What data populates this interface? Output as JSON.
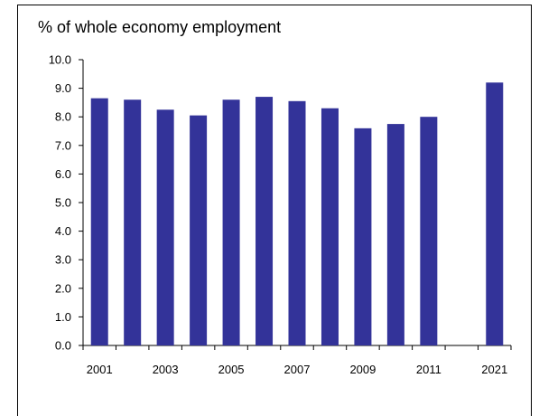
{
  "chart_data": {
    "type": "bar",
    "title": "% of whole economy employment",
    "xlabel": "",
    "ylabel": "",
    "categories": [
      "2001",
      "2002",
      "2003",
      "2004",
      "2005",
      "2006",
      "2007",
      "2008",
      "2009",
      "2010",
      "2011",
      "2012",
      "2021"
    ],
    "x_tick_labels": [
      "2001",
      "",
      "2003",
      "",
      "2005",
      "",
      "2007",
      "",
      "2009",
      "",
      "2011",
      "",
      "2021"
    ],
    "values": [
      8.65,
      8.6,
      8.25,
      8.05,
      8.6,
      8.7,
      8.55,
      8.3,
      7.6,
      7.75,
      8.0,
      null,
      9.2
    ],
    "ylim": [
      0,
      10
    ],
    "y_ticks": [
      "0.0",
      "1.0",
      "2.0",
      "3.0",
      "4.0",
      "5.0",
      "6.0",
      "7.0",
      "8.0",
      "9.0",
      "10.0"
    ],
    "grid": false,
    "bar_color": "#333399"
  }
}
